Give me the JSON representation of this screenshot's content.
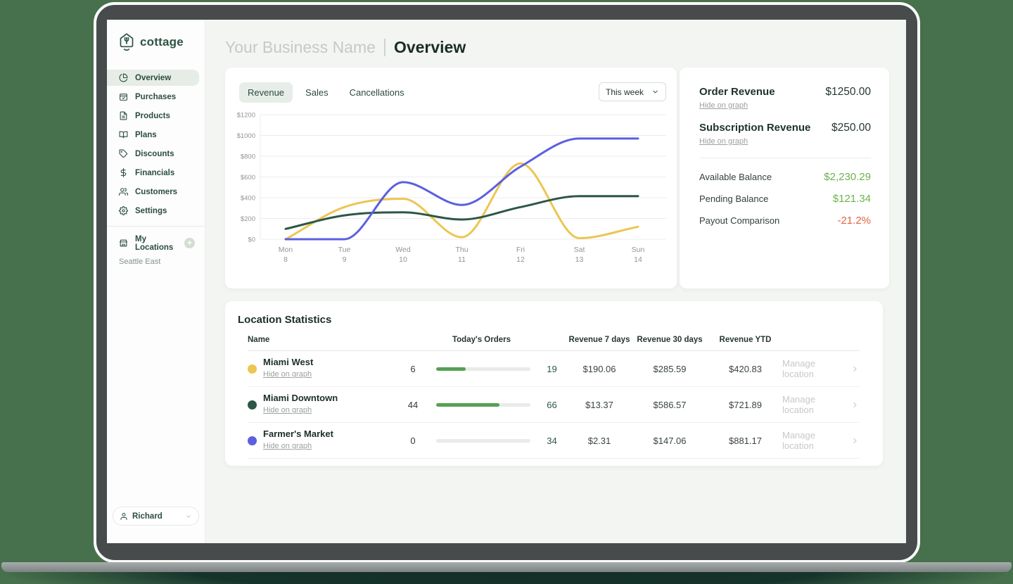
{
  "brand": {
    "name": "cottage"
  },
  "page": {
    "business_name": "Your Business Name",
    "title": "Overview"
  },
  "sidebar": {
    "items": [
      {
        "label": "Overview",
        "icon": "pie-chart-icon",
        "active": true
      },
      {
        "label": "Purchases",
        "icon": "purchases-icon",
        "active": false
      },
      {
        "label": "Products",
        "icon": "products-icon",
        "active": false
      },
      {
        "label": "Plans",
        "icon": "plans-icon",
        "active": false
      },
      {
        "label": "Discounts",
        "icon": "discounts-icon",
        "active": false
      },
      {
        "label": "Financials",
        "icon": "financials-icon",
        "active": false
      },
      {
        "label": "Customers",
        "icon": "customers-icon",
        "active": false
      },
      {
        "label": "Settings",
        "icon": "settings-icon",
        "active": false
      }
    ],
    "locations_label": "My Locations",
    "locations": [
      "Seattle East"
    ],
    "user": {
      "name": "Richard"
    }
  },
  "chart_panel": {
    "tabs": [
      {
        "label": "Revenue",
        "active": true
      },
      {
        "label": "Sales",
        "active": false
      },
      {
        "label": "Cancellations",
        "active": false
      }
    ],
    "range_label": "This week"
  },
  "chart_data": {
    "type": "line",
    "categories": [
      [
        "Mon",
        "8"
      ],
      [
        "Tue",
        "9"
      ],
      [
        "Wed",
        "10"
      ],
      [
        "Thu",
        "11"
      ],
      [
        "Fri",
        "12"
      ],
      [
        "Sat",
        "13"
      ],
      [
        "Sun",
        "14"
      ]
    ],
    "ylim": [
      0,
      1200
    ],
    "yticks": [
      0,
      200,
      400,
      600,
      800,
      1000,
      1200
    ],
    "ytick_prefix": "$",
    "grid": true,
    "legend_position": "none",
    "series": [
      {
        "name": "Miami West",
        "color": "#ecc653",
        "values": [
          0,
          310,
          390,
          20,
          730,
          10,
          120
        ]
      },
      {
        "name": "Miami Downtown",
        "color": "#2c5745",
        "values": [
          100,
          230,
          260,
          190,
          310,
          415,
          415
        ]
      },
      {
        "name": "Farmer's Market",
        "color": "#5c5fe0",
        "values": [
          0,
          0,
          550,
          330,
          700,
          970,
          970
        ]
      }
    ]
  },
  "revenue_panel": {
    "items": [
      {
        "label": "Order Revenue",
        "value": "$1250.00",
        "link": "Hide on graph"
      },
      {
        "label": "Subscription Revenue",
        "value": "$250.00",
        "link": "Hide on graph"
      }
    ],
    "balances": [
      {
        "label": "Available Balance",
        "value": "$2,230.29",
        "color": "#6cb34c"
      },
      {
        "label": "Pending Balance",
        "value": "$121.34",
        "color": "#6cb34c"
      },
      {
        "label": "Payout Comparison",
        "value": "-21.2%",
        "color": "#e2643f"
      }
    ]
  },
  "location_stats": {
    "title": "Location Statistics",
    "headers": [
      "Name",
      "Today's Orders",
      "Revenue 7 days",
      "Revenue 30 days",
      "Revenue YTD"
    ],
    "progress_color": "#55a054",
    "rows": [
      {
        "name": "Miami West",
        "dot_color": "#ecc653",
        "link": "Hide on graph",
        "orders_today": "6",
        "progress_pct": 31,
        "orders_total": "19",
        "revenue_7d": "$190.06",
        "revenue_30d": "$285.59",
        "revenue_ytd": "$420.83",
        "action": "Manage location"
      },
      {
        "name": "Miami Downtown",
        "dot_color": "#2c5745",
        "link": "Hide on graph",
        "orders_today": "44",
        "progress_pct": 67,
        "orders_total": "66",
        "revenue_7d": "$13.37",
        "revenue_30d": "$586.57",
        "revenue_ytd": "$721.89",
        "action": "Manage location"
      },
      {
        "name": "Farmer's Market",
        "dot_color": "#5c5fe0",
        "link": "Hide on graph",
        "orders_today": "0",
        "progress_pct": 0,
        "orders_total": "34",
        "revenue_7d": "$2.31",
        "revenue_30d": "$147.06",
        "revenue_ytd": "$881.17",
        "action": "Manage location"
      }
    ]
  }
}
